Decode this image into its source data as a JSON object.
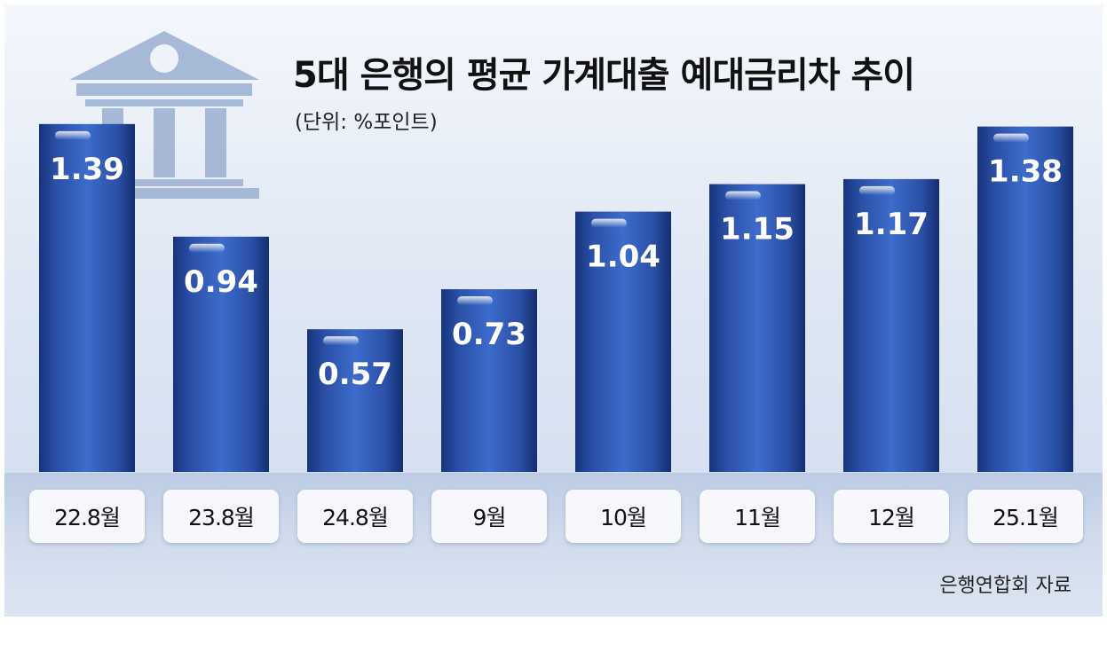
{
  "header": {
    "title": "5대 은행의 평균 가계대출 예대금리차 추이",
    "unit": "(단위: %포인트)"
  },
  "footer": {
    "source": "은행연합회 자료"
  },
  "colors": {
    "bar": "#2e58b2",
    "bar_dark": "#17347c",
    "label": "#ffffff",
    "background": "#dfe7f4",
    "icon": "#9fb3d3"
  },
  "icon": {
    "name": "bank-building-icon"
  },
  "chart_data": {
    "type": "bar",
    "title": "5대 은행의 평균 가계대출 예대금리차 추이",
    "unit": "(단위: %포인트)",
    "categories": [
      "22.8월",
      "23.8월",
      "24.8월",
      "9월",
      "10월",
      "11월",
      "12월",
      "25.1월"
    ],
    "values": [
      1.39,
      0.94,
      0.57,
      0.73,
      1.04,
      1.15,
      1.17,
      1.38
    ],
    "value_labels": [
      "1.39",
      "0.94",
      "0.57",
      "0.73",
      "1.04",
      "1.15",
      "1.17",
      "1.38"
    ],
    "ylim": [
      0,
      1.4
    ],
    "grid": false,
    "legend": "none"
  }
}
